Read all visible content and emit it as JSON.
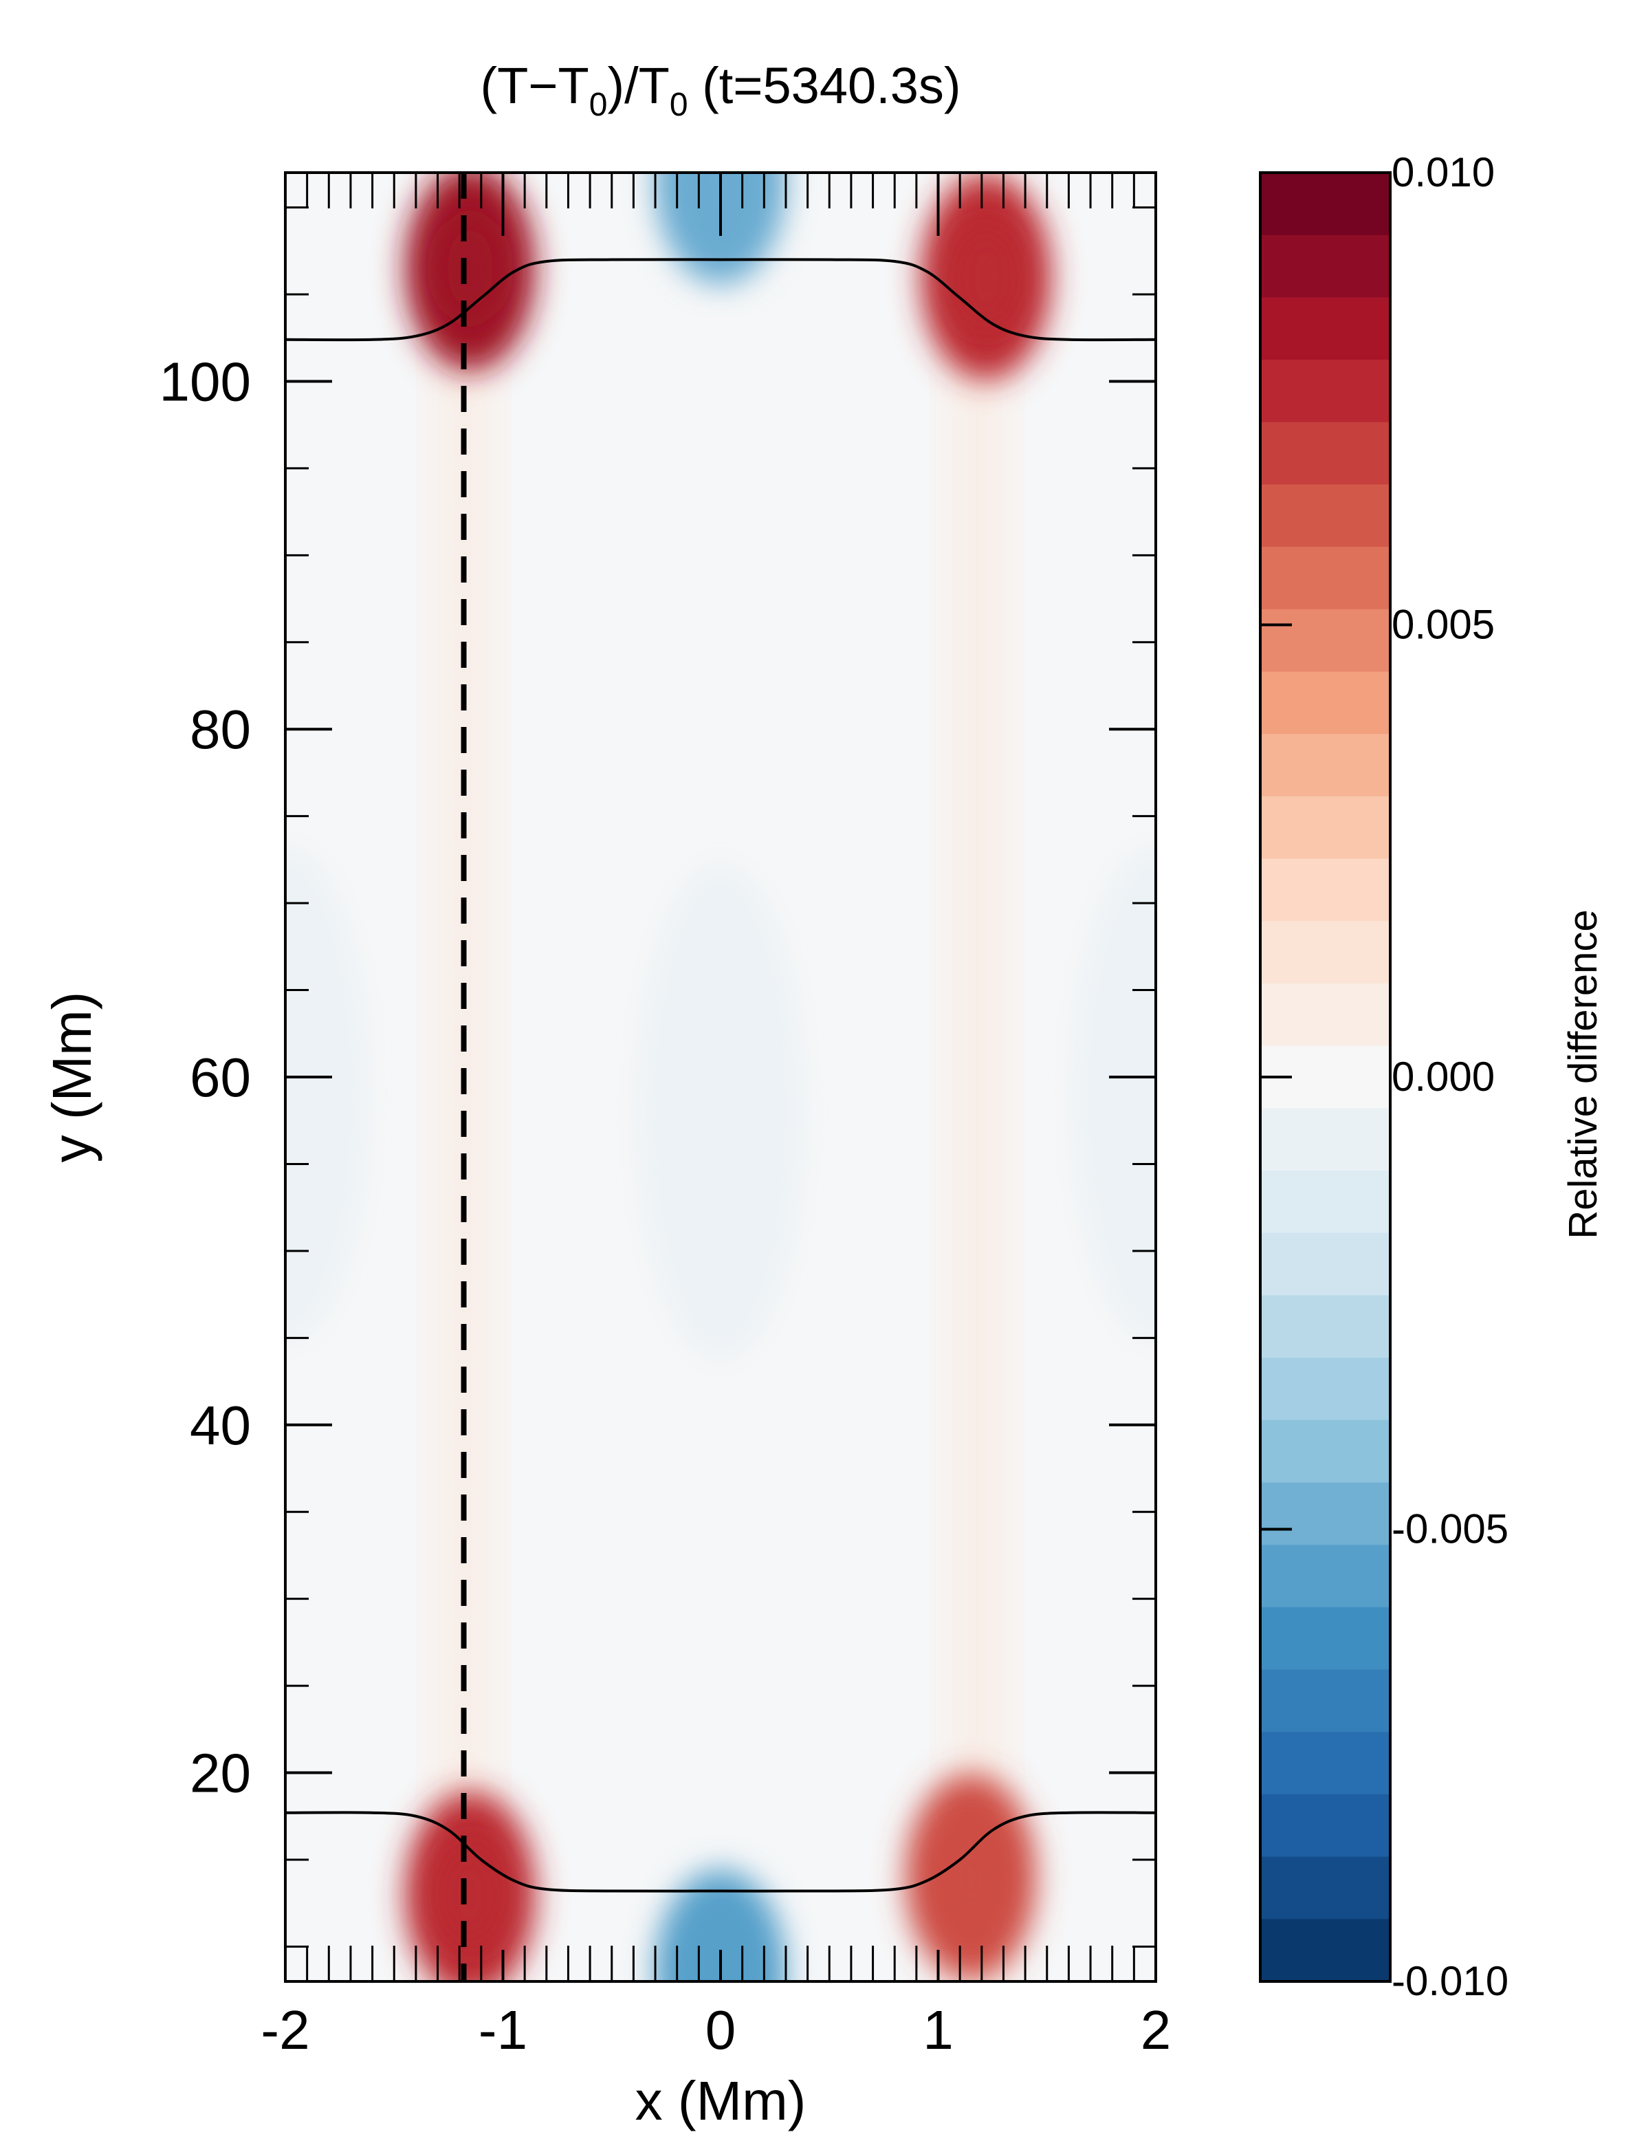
{
  "chart_data": {
    "type": "heatmap",
    "title": {
      "prefix": "(T−T",
      "sub1": "0",
      "middle": ")/T",
      "sub2": "0",
      "suffix": " (t=5340.3s)"
    },
    "xlabel": "x (Mm)",
    "ylabel": "y (Mm)",
    "xlim": [
      -2,
      2
    ],
    "ylim": [
      8,
      112
    ],
    "x_ticks": [
      -2,
      -1,
      0,
      1,
      2
    ],
    "x_tick_labels": [
      "-2",
      "-1",
      "0",
      "1",
      "2"
    ],
    "y_ticks": [
      20,
      40,
      60,
      80,
      100
    ],
    "y_tick_labels": [
      "20",
      "40",
      "60",
      "80",
      "100"
    ],
    "colorbar": {
      "label": "Relative difference",
      "vmin": -0.01,
      "vmax": 0.01,
      "levels": 29,
      "ticks": [
        0.01,
        0.005,
        0.0,
        -0.005,
        -0.01
      ],
      "tick_labels": [
        "0.010",
        "0.005",
        "0.000",
        "-0.005",
        "-0.010"
      ],
      "colormap": "RdBu_r",
      "colors": [
        "#053061",
        "#2166ac",
        "#4393c3",
        "#92c5de",
        "#d1e5f0",
        "#f7f7f7",
        "#fddbc7",
        "#f4a582",
        "#d6604d",
        "#b2182b",
        "#67001f"
      ]
    },
    "contour_lines": [
      {
        "name": "upper-boundary",
        "x": [
          -2.0,
          -1.6,
          -1.4,
          -1.25,
          -1.1,
          -0.95,
          -0.8,
          -0.5,
          0,
          0.5,
          0.8,
          0.95,
          1.1,
          1.25,
          1.4,
          1.6,
          2.0
        ],
        "y": [
          102.4,
          102.4,
          102.6,
          103.3,
          104.8,
          106.3,
          106.9,
          107.0,
          107.0,
          107.0,
          106.9,
          106.3,
          104.8,
          103.3,
          102.6,
          102.4,
          102.4
        ]
      },
      {
        "name": "lower-boundary",
        "x": [
          -2.0,
          -1.6,
          -1.4,
          -1.25,
          -1.1,
          -0.95,
          -0.8,
          -0.5,
          0,
          0.5,
          0.8,
          0.95,
          1.1,
          1.25,
          1.4,
          1.6,
          2.0
        ],
        "y": [
          17.7,
          17.7,
          17.5,
          16.7,
          15.0,
          13.8,
          13.3,
          13.2,
          13.2,
          13.2,
          13.3,
          13.8,
          15.0,
          16.7,
          17.5,
          17.7,
          17.7
        ]
      }
    ],
    "marker_line": {
      "x": -1.18,
      "style": "dashed"
    },
    "field_features": [
      {
        "name": "left-hot-column",
        "x": -1.18,
        "width": 0.22,
        "y_range": [
          8,
          112
        ],
        "value": 0.0008
      },
      {
        "name": "right-hot-column",
        "x": 1.18,
        "width": 0.22,
        "y_range": [
          8,
          112
        ],
        "value": 0.0008
      },
      {
        "name": "left-top-hotspot",
        "x": -1.15,
        "y": 106.5,
        "value": 0.0085
      },
      {
        "name": "right-top-hotspot",
        "x": 1.22,
        "y": 106.0,
        "value": 0.0075
      },
      {
        "name": "left-bottom-hotspot",
        "x": -1.15,
        "y": 13.0,
        "value": 0.0075
      },
      {
        "name": "right-bottom-hotspot",
        "x": 1.15,
        "y": 14.0,
        "value": 0.0065
      },
      {
        "name": "top-cold-spot",
        "x": 0.0,
        "y": 111.5,
        "value": -0.005
      },
      {
        "name": "bottom-cold-spot",
        "x": 0.0,
        "y": 8.5,
        "value": -0.0055
      },
      {
        "name": "center-cold-blob",
        "x": 0.0,
        "y": 58.0,
        "value": -0.0006
      },
      {
        "name": "left-edge-cold-blob",
        "x": -2.0,
        "y": 59.0,
        "value": -0.0006
      },
      {
        "name": "right-edge-cold-blob",
        "x": 2.0,
        "y": 59.0,
        "value": -0.0006
      }
    ]
  }
}
